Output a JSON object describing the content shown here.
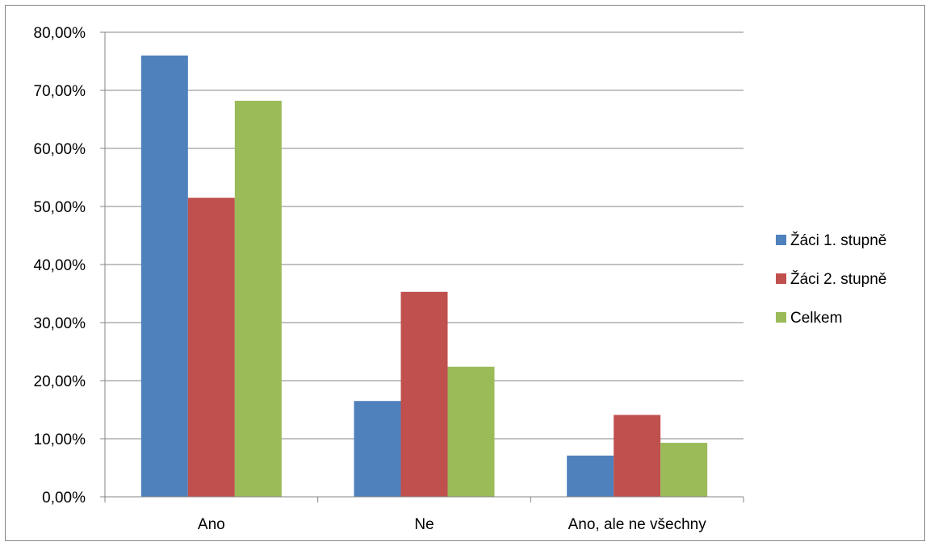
{
  "chart_data": {
    "type": "bar",
    "categories": [
      "Ano",
      "Ne",
      "Ano, ale ne všechny"
    ],
    "series": [
      {
        "name": "Žáci 1. stupně",
        "values": [
          76.0,
          16.5,
          7.1
        ],
        "color": "#4F81BD"
      },
      {
        "name": "Žáci 2. stupně",
        "values": [
          51.5,
          35.3,
          14.1
        ],
        "color": "#C0504D"
      },
      {
        "name": "Celkem",
        "values": [
          68.2,
          22.4,
          9.3
        ],
        "color": "#9BBB59"
      }
    ],
    "ylim": [
      0,
      80
    ],
    "yticks": [
      "0,00%",
      "10,00%",
      "20,00%",
      "30,00%",
      "40,00%",
      "50,00%",
      "60,00%",
      "70,00%",
      "80,00%"
    ],
    "title": "",
    "xlabel": "",
    "ylabel": "",
    "grid": true,
    "legend_position": "right"
  }
}
